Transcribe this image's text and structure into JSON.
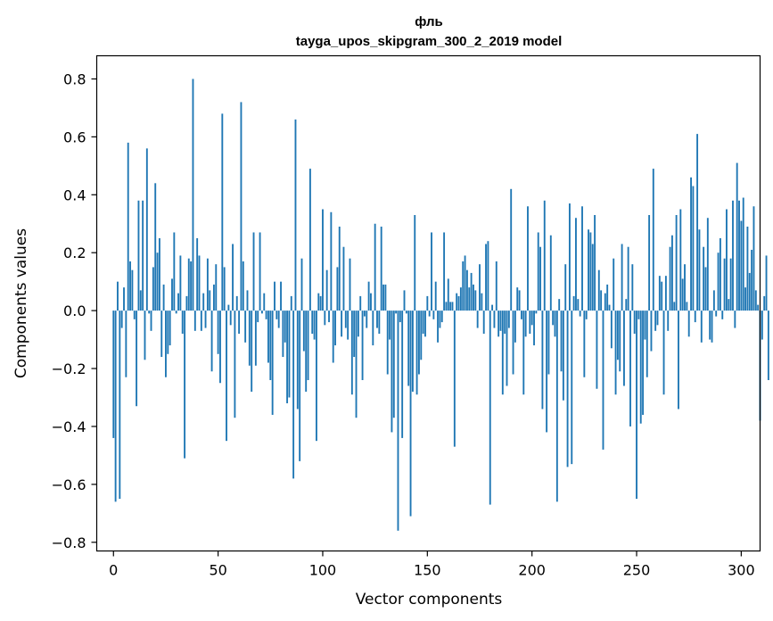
{
  "chart_data": {
    "type": "bar",
    "title": "фль",
    "subtitle": "tayga_upos_skipgram_300_2_2019 model",
    "xlabel": "Vector components",
    "ylabel": "Components values",
    "xlim": [
      -8,
      309
    ],
    "ylim": [
      -0.83,
      0.88
    ],
    "xticks": [
      0,
      50,
      100,
      150,
      200,
      250,
      300
    ],
    "yticks": [
      -0.8,
      -0.6,
      -0.4,
      -0.2,
      0.0,
      0.2,
      0.4,
      0.6,
      0.8
    ],
    "ytick_labels": [
      "−0.8",
      "−0.6",
      "−0.4",
      "−0.2",
      "0.0",
      "0.2",
      "0.4",
      "0.6",
      "0.8"
    ],
    "bar_color": "#1f77b4",
    "values": [
      -0.44,
      -0.66,
      0.1,
      -0.65,
      -0.06,
      0.08,
      -0.23,
      0.58,
      0.17,
      0.14,
      -0.03,
      -0.33,
      0.38,
      0.07,
      0.38,
      -0.17,
      0.56,
      -0.01,
      -0.07,
      0.15,
      0.44,
      0.2,
      0.25,
      -0.16,
      0.09,
      -0.23,
      -0.15,
      -0.12,
      0.11,
      0.27,
      -0.01,
      0.06,
      0.19,
      -0.08,
      -0.51,
      0.05,
      0.18,
      0.17,
      0.8,
      -0.07,
      0.25,
      0.19,
      -0.07,
      0.06,
      -0.06,
      0.18,
      0.07,
      -0.21,
      0.09,
      0.16,
      -0.15,
      -0.25,
      0.68,
      0.15,
      -0.45,
      0.02,
      -0.05,
      0.23,
      -0.37,
      0.05,
      -0.08,
      0.72,
      0.17,
      -0.11,
      0.07,
      -0.19,
      -0.28,
      0.27,
      -0.19,
      -0.04,
      0.27,
      -0.01,
      0.06,
      -0.03,
      -0.18,
      -0.24,
      -0.36,
      0.1,
      -0.03,
      -0.06,
      0.1,
      -0.16,
      -0.11,
      -0.32,
      -0.3,
      0.05,
      -0.58,
      0.66,
      -0.34,
      -0.52,
      0.18,
      -0.14,
      -0.28,
      -0.24,
      0.49,
      -0.08,
      -0.1,
      -0.45,
      0.06,
      0.05,
      0.35,
      -0.05,
      0.14,
      -0.04,
      0.34,
      -0.18,
      -0.12,
      0.15,
      0.29,
      -0.09,
      0.22,
      -0.06,
      -0.1,
      0.18,
      -0.29,
      -0.16,
      -0.37,
      -0.09,
      0.05,
      -0.24,
      -0.02,
      -0.06,
      0.1,
      0.06,
      -0.12,
      0.3,
      -0.06,
      -0.08,
      0.29,
      0.09,
      0.09,
      -0.22,
      -0.1,
      -0.42,
      -0.37,
      -0.01,
      -0.76,
      -0.04,
      -0.44,
      0.07,
      -0.01,
      -0.26,
      -0.71,
      -0.28,
      0.33,
      -0.29,
      -0.22,
      -0.17,
      -0.08,
      -0.09,
      0.05,
      -0.02,
      0.27,
      -0.03,
      0.1,
      -0.11,
      -0.06,
      -0.04,
      0.27,
      0.03,
      0.11,
      0.03,
      0.03,
      -0.47,
      0.06,
      0.05,
      0.08,
      0.17,
      0.19,
      0.14,
      0.08,
      0.13,
      0.09,
      0.07,
      -0.06,
      0.16,
      0.06,
      -0.08,
      0.23,
      0.24,
      -0.67,
      0.02,
      -0.06,
      0.17,
      -0.09,
      -0.07,
      -0.29,
      -0.08,
      -0.26,
      -0.06,
      0.42,
      -0.22,
      -0.11,
      0.08,
      0.07,
      -0.03,
      -0.29,
      -0.09,
      0.36,
      -0.08,
      -0.05,
      -0.12,
      -0.01,
      0.27,
      0.22,
      -0.34,
      0.38,
      -0.42,
      -0.22,
      0.26,
      -0.05,
      -0.09,
      -0.66,
      0.04,
      -0.21,
      -0.31,
      0.16,
      -0.54,
      0.37,
      -0.53,
      0.05,
      0.32,
      0.04,
      -0.02,
      0.36,
      -0.23,
      -0.03,
      0.28,
      0.27,
      0.23,
      0.33,
      -0.27,
      0.14,
      0.07,
      -0.48,
      0.06,
      0.09,
      0.02,
      -0.13,
      0.18,
      -0.29,
      -0.17,
      -0.21,
      0.23,
      -0.26,
      0.04,
      0.22,
      -0.4,
      0.16,
      -0.08,
      -0.65,
      -0.03,
      -0.39,
      -0.36,
      -0.1,
      -0.23,
      0.33,
      -0.14,
      0.49,
      -0.07,
      -0.05,
      0.12,
      0.1,
      -0.29,
      0.12,
      -0.07,
      0.22,
      0.26,
      0.03,
      0.33,
      -0.34,
      0.35,
      0.11,
      0.16,
      0.03,
      -0.09,
      0.46,
      0.43,
      -0.04,
      0.61,
      0.28,
      -0.11,
      0.22,
      0.15,
      0.32,
      -0.1,
      -0.11,
      0.07,
      -0.02,
      0.2,
      0.25,
      -0.03,
      0.18,
      0.35,
      0.04,
      0.18,
      0.38,
      -0.06,
      0.51,
      0.38,
      0.31,
      0.39,
      0.08,
      0.29,
      0.13,
      0.21,
      0.36,
      0.07,
      0.02,
      -0.38,
      -0.1,
      0.05,
      0.19,
      -0.24
    ]
  }
}
